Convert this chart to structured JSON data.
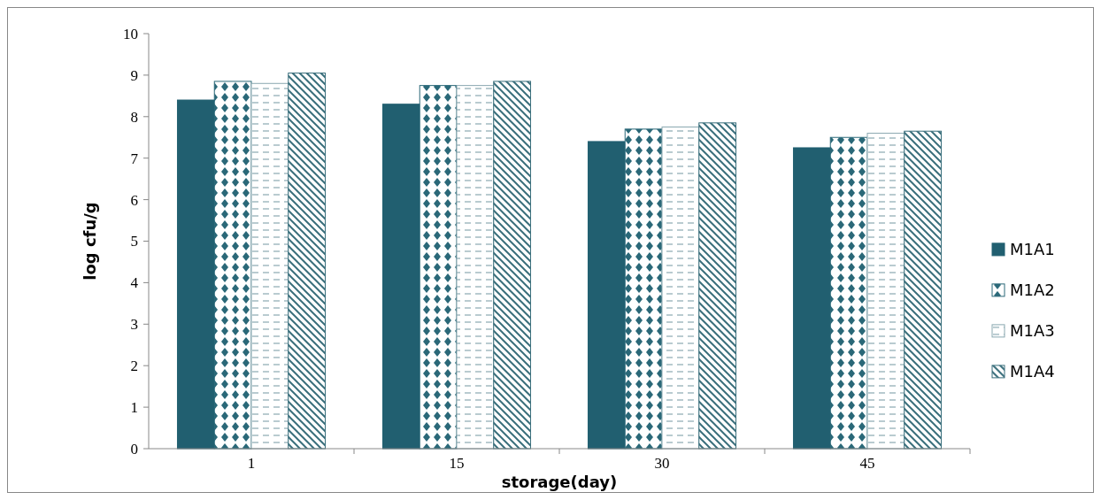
{
  "chart_data": {
    "type": "bar",
    "xlabel": "storage(day)",
    "ylabel": "log cfu/g",
    "categories": [
      "1",
      "15",
      "30",
      "45"
    ],
    "series": [
      {
        "name": "M1A1",
        "color": "#215f70",
        "values": [
          8.4,
          8.3,
          7.4,
          7.25
        ]
      },
      {
        "name": "M1A2",
        "color": "#2a6878",
        "values": [
          8.85,
          8.75,
          7.7,
          7.5
        ]
      },
      {
        "name": "M1A3",
        "color": "#8aa8b0",
        "values": [
          8.8,
          8.75,
          7.75,
          7.6
        ]
      },
      {
        "name": "M1A4",
        "color": "#3a6f7c",
        "values": [
          9.05,
          8.85,
          7.85,
          7.65
        ]
      }
    ],
    "ylim": [
      0,
      10
    ],
    "yticks": [
      0,
      1,
      2,
      3,
      4,
      5,
      6,
      7,
      8,
      9,
      10
    ],
    "grid": false,
    "legend": "right"
  }
}
